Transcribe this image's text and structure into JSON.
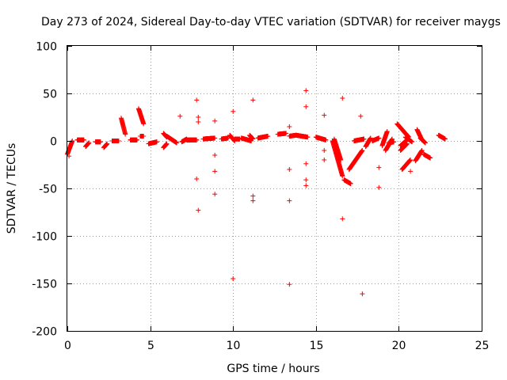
{
  "chart_data": {
    "type": "scatter",
    "title": "Day 273 of 2024, Sidereal Day-to-day VTEC variation (SDTVAR) for receiver maygs",
    "xlabel": "GPS time / hours",
    "ylabel": "SDTVAR / TECUs",
    "xlim": [
      0,
      25
    ],
    "ylim": [
      -200,
      100
    ],
    "xticks": [
      0,
      5,
      10,
      15,
      20,
      25
    ],
    "yticks": [
      -200,
      -150,
      -100,
      -50,
      0,
      50,
      100
    ],
    "grid": true,
    "marker": "+",
    "marker_color": "#ff0000",
    "series": [
      {
        "name": "SDTVAR",
        "segments": [
          {
            "x0": 0.0,
            "x1": 0.3,
            "y0": -14,
            "y1": 0
          },
          {
            "x0": 0.6,
            "x1": 1.0,
            "y0": 1,
            "y1": 1
          },
          {
            "x0": 1.1,
            "x1": 1.3,
            "y0": -6,
            "y1": -2
          },
          {
            "x0": 1.7,
            "x1": 2.0,
            "y0": -1,
            "y1": -1
          },
          {
            "x0": 2.2,
            "x1": 2.4,
            "y0": -7,
            "y1": -3
          },
          {
            "x0": 2.7,
            "x1": 3.1,
            "y0": 0,
            "y1": 0
          },
          {
            "x0": 3.25,
            "x1": 3.5,
            "y0": 24,
            "y1": 7
          },
          {
            "x0": 3.8,
            "x1": 4.2,
            "y0": 1,
            "y1": 1
          },
          {
            "x0": 4.3,
            "x1": 4.6,
            "y0": 34,
            "y1": 18
          },
          {
            "x0": 4.4,
            "x1": 4.6,
            "y0": 5,
            "y1": 5
          },
          {
            "x0": 4.9,
            "x1": 5.4,
            "y0": -3,
            "y1": -1
          },
          {
            "x0": 5.8,
            "x1": 6.0,
            "y0": 8,
            "y1": 4
          },
          {
            "x0": 5.8,
            "x1": 6.0,
            "y0": -7,
            "y1": -3
          },
          {
            "x0": 6.0,
            "x1": 6.6,
            "y0": 5,
            "y1": -2
          },
          {
            "x0": 6.9,
            "x1": 7.2,
            "y0": -1,
            "y1": 2
          },
          {
            "x0": 7.2,
            "x1": 7.8,
            "y0": 1,
            "y1": 1
          },
          {
            "x0": 8.2,
            "x1": 8.9,
            "y0": 2,
            "y1": 3
          },
          {
            "x0": 9.3,
            "x1": 9.7,
            "y0": 2,
            "y1": 3
          },
          {
            "x0": 9.8,
            "x1": 10.1,
            "y0": 6,
            "y1": 0
          },
          {
            "x0": 10.1,
            "x1": 10.4,
            "y0": 2,
            "y1": 2
          },
          {
            "x0": 10.5,
            "x1": 11.1,
            "y0": 3,
            "y1": 0
          },
          {
            "x0": 11.0,
            "x1": 11.2,
            "y0": 6,
            "y1": 2
          },
          {
            "x0": 11.5,
            "x1": 12.1,
            "y0": 3,
            "y1": 5
          },
          {
            "x0": 12.7,
            "x1": 13.2,
            "y0": 7,
            "y1": 8
          },
          {
            "x0": 13.4,
            "x1": 13.8,
            "y0": 5,
            "y1": 6
          },
          {
            "x0": 13.8,
            "x1": 14.5,
            "y0": 6,
            "y1": 4
          },
          {
            "x0": 15.0,
            "x1": 15.6,
            "y0": 4,
            "y1": 1
          },
          {
            "x0": 16.0,
            "x1": 16.6,
            "y0": 0,
            "y1": -37
          },
          {
            "x0": 16.1,
            "x1": 16.5,
            "y0": 2,
            "y1": -20
          },
          {
            "x0": 16.7,
            "x1": 17.1,
            "y0": -41,
            "y1": -45
          },
          {
            "x0": 17.0,
            "x1": 17.8,
            "y0": -30,
            "y1": -10
          },
          {
            "x0": 17.3,
            "x1": 17.9,
            "y0": 0,
            "y1": 2
          },
          {
            "x0": 18.0,
            "x1": 18.3,
            "y0": -6,
            "y1": 3
          },
          {
            "x0": 18.4,
            "x1": 18.8,
            "y0": 0,
            "y1": 3
          },
          {
            "x0": 19.0,
            "x1": 19.3,
            "y0": -5,
            "y1": 10
          },
          {
            "x0": 19.2,
            "x1": 19.6,
            "y0": -10,
            "y1": 2
          },
          {
            "x0": 19.4,
            "x1": 19.7,
            "y0": -2,
            "y1": -1
          },
          {
            "x0": 19.9,
            "x1": 20.6,
            "y0": 18,
            "y1": 4
          },
          {
            "x0": 20.1,
            "x1": 20.5,
            "y0": -5,
            "y1": 1
          },
          {
            "x0": 20.1,
            "x1": 20.5,
            "y0": -10,
            "y1": -3
          },
          {
            "x0": 20.2,
            "x1": 20.7,
            "y0": -30,
            "y1": -20
          },
          {
            "x0": 20.4,
            "x1": 20.8,
            "y0": 4,
            "y1": -1
          },
          {
            "x0": 21.0,
            "x1": 21.4,
            "y0": -21,
            "y1": -10
          },
          {
            "x0": 21.1,
            "x1": 21.4,
            "y0": 12,
            "y1": 1
          },
          {
            "x0": 21.3,
            "x1": 21.6,
            "y0": 3,
            "y1": -2
          },
          {
            "x0": 21.5,
            "x1": 21.9,
            "y0": -14,
            "y1": -18
          },
          {
            "x0": 22.4,
            "x1": 22.8,
            "y0": 6,
            "y1": 2
          }
        ],
        "outliers": [
          {
            "x": 0.1,
            "y": -16
          },
          {
            "x": 6.8,
            "y": 26
          },
          {
            "x": 7.8,
            "y": 43
          },
          {
            "x": 7.9,
            "y": 25
          },
          {
            "x": 7.9,
            "y": 20
          },
          {
            "x": 7.8,
            "y": -40
          },
          {
            "x": 7.9,
            "y": -73
          },
          {
            "x": 8.9,
            "y": 21
          },
          {
            "x": 8.9,
            "y": -15
          },
          {
            "x": 8.9,
            "y": -32
          },
          {
            "x": 8.9,
            "y": -56
          },
          {
            "x": 10.0,
            "y": 31
          },
          {
            "x": 10.0,
            "y": -145
          },
          {
            "x": 11.2,
            "y": 43
          },
          {
            "x": 11.2,
            "y": -58
          },
          {
            "x": 11.2,
            "y": -63
          },
          {
            "x": 13.4,
            "y": 15
          },
          {
            "x": 13.4,
            "y": -30
          },
          {
            "x": 13.4,
            "y": -63
          },
          {
            "x": 13.4,
            "y": -151
          },
          {
            "x": 14.4,
            "y": 53
          },
          {
            "x": 14.4,
            "y": 36
          },
          {
            "x": 14.4,
            "y": -24
          },
          {
            "x": 14.4,
            "y": -41
          },
          {
            "x": 14.4,
            "y": -47
          },
          {
            "x": 15.5,
            "y": 27
          },
          {
            "x": 15.5,
            "y": -10
          },
          {
            "x": 15.5,
            "y": -20
          },
          {
            "x": 16.6,
            "y": 45
          },
          {
            "x": 16.6,
            "y": -82
          },
          {
            "x": 17.7,
            "y": 26
          },
          {
            "x": 17.8,
            "y": -161
          },
          {
            "x": 18.8,
            "y": -28
          },
          {
            "x": 18.8,
            "y": -49
          },
          {
            "x": 20.7,
            "y": -32
          }
        ]
      }
    ]
  }
}
